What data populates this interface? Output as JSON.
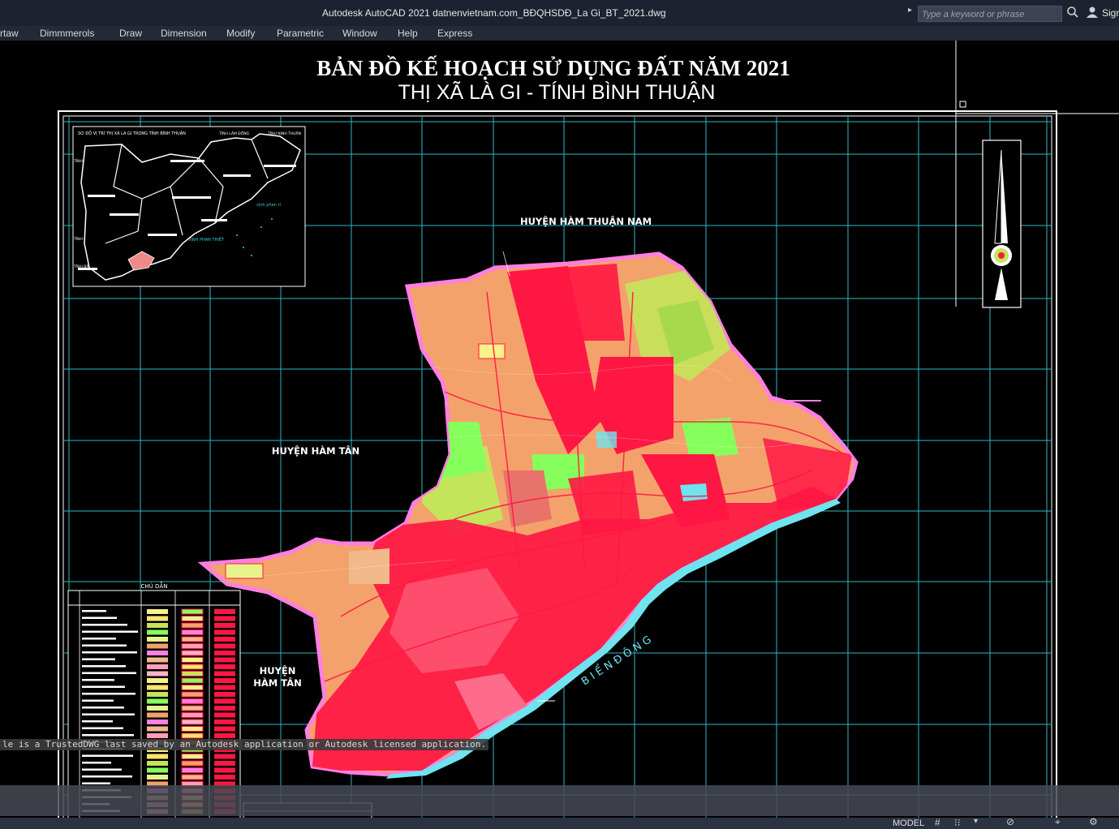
{
  "window": {
    "title": "Autodesk AutoCAD 2021   datnenvietnam.com_BĐQHSDĐ_La Gi_BT_2021.dwg",
    "search_placeholder": "Type a keyword or phrase",
    "sign_in": "Sign"
  },
  "menu": [
    "rtaw",
    "Dimmmerols",
    "Draw",
    "Dimension",
    "Modify",
    "Parametric",
    "Window",
    "Help",
    "Express"
  ],
  "map": {
    "title": "BẢN ĐỒ KẾ HOẠCH SỬ DỤNG ĐẤT NĂM 2021",
    "subtitle": "THỊ XÃ LÀ GI - TÍNH BÌNH THUẬN",
    "labels": {
      "ham_thuan_nam": "HUYỆN HÀM THUẬN NAM",
      "ham_tan_1": "HUYỆN HÀM TÂN",
      "ham_tan_2_line1": "HUYỆN",
      "ham_tan_2_line2": "HÀM TÂN",
      "sea": "B I Ể N   Đ Ô N G"
    },
    "inset": {
      "title": "SƠ ĐỒ VỊ TRÍ THỊ XÃ LA GI TRONG TỈNH BÌNH THUẬN",
      "lam_dong": "TỈNH LÂM ĐỒNG",
      "ninh_thuan": "TỈNH NINH THUẬN",
      "dong_nai_1": "TỈNH ĐỒNG NAI",
      "dong_nai_2": "TỈNH ĐỒNG NAI",
      "ba_ria": "TỈNH BÀ RỊA",
      "vinh_phan_thiet": "VỊNH  PHAN  THIẾT",
      "vinh_phan_ri": "vịnh phan rí"
    },
    "legend_title": "CHÚ DẪN"
  },
  "command_line": {
    "message": "le is a TrustedDWG last saved by an Autodesk application or Autodesk licensed application."
  },
  "status": {
    "model": "MODEL"
  },
  "colors": {
    "frame": "#ffffff",
    "grid": "#2fb7c2",
    "boundary": "#ff7fe0",
    "residential": "#ff1744",
    "agricultural": "#f4a26b",
    "forest": "#c4e45a",
    "green": "#86ff5c",
    "water": "#6fe3ee"
  }
}
